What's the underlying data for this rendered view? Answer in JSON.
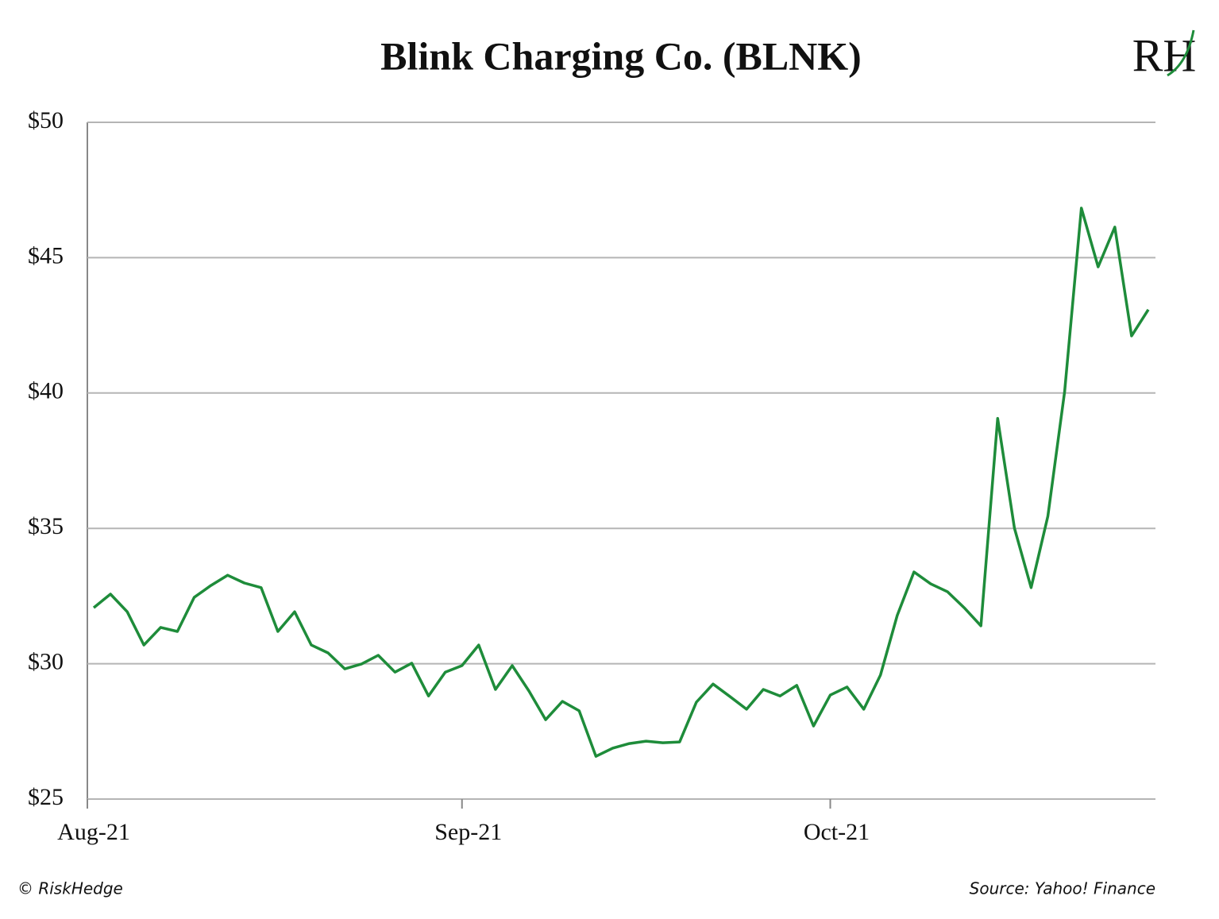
{
  "chart_data": {
    "type": "line",
    "title": "Blink Charging Co. (BLNK)",
    "logo": "RH",
    "credit": "© RiskHedge",
    "source": "Source: Yahoo! Finance",
    "categories": [
      "Aug-21",
      null,
      null,
      null,
      null,
      null,
      null,
      null,
      null,
      null,
      null,
      null,
      null,
      null,
      null,
      null,
      null,
      null,
      null,
      null,
      null,
      null,
      "Sep-21",
      null,
      null,
      null,
      null,
      null,
      null,
      null,
      null,
      null,
      null,
      null,
      null,
      null,
      null,
      null,
      null,
      null,
      null,
      null,
      null,
      null,
      "Oct-21",
      null,
      null,
      null,
      null,
      null,
      null,
      null,
      null,
      null,
      null,
      null,
      null,
      null,
      null,
      null,
      null,
      null,
      null,
      null
    ],
    "series": [
      {
        "name": "BLNK",
        "color": "#1e8c3a",
        "values": [
          32.07,
          32.57,
          31.92,
          30.69,
          31.34,
          31.19,
          32.45,
          32.89,
          33.27,
          32.98,
          32.81,
          31.19,
          31.92,
          30.69,
          30.4,
          29.81,
          29.99,
          30.31,
          29.69,
          30.02,
          28.81,
          29.69,
          29.93,
          30.69,
          29.05,
          29.93,
          28.99,
          27.93,
          28.61,
          28.26,
          26.58,
          26.88,
          27.05,
          27.14,
          27.08,
          27.11,
          28.58,
          29.25,
          28.79,
          28.32,
          29.05,
          28.81,
          29.2,
          27.7,
          28.84,
          29.14,
          28.32,
          29.58,
          31.78,
          33.39,
          32.95,
          32.66,
          32.07,
          31.4,
          39.06,
          35.01,
          32.81,
          35.45,
          40.05,
          46.83,
          44.66,
          46.13,
          42.11,
          43.08
        ]
      }
    ],
    "ylim": [
      25,
      50
    ],
    "yticks": [
      {
        "value": 25,
        "label": "$25"
      },
      {
        "value": 30,
        "label": "$30"
      },
      {
        "value": 35,
        "label": "$35"
      },
      {
        "value": 40,
        "label": "$40"
      },
      {
        "value": 45,
        "label": "$45"
      },
      {
        "value": 50,
        "label": "$50"
      }
    ],
    "grid": true
  }
}
